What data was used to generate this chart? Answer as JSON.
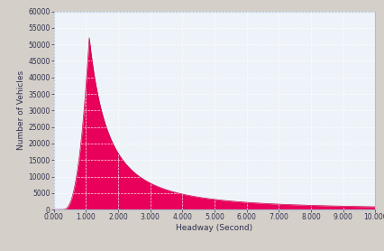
{
  "title": "",
  "xlabel": "Headway (Second)",
  "ylabel": "Number of Vehicles",
  "xlim": [
    0.0,
    10.0
  ],
  "ylim": [
    0,
    60000
  ],
  "xticks": [
    0.0,
    1.0,
    2.0,
    3.0,
    4.0,
    5.0,
    6.0,
    7.0,
    8.0,
    9.0,
    10.0
  ],
  "yticks": [
    0,
    5000,
    10000,
    15000,
    20000,
    25000,
    30000,
    35000,
    40000,
    45000,
    50000,
    55000,
    60000
  ],
  "fill_color": "#E8005A",
  "line_color": "#CC0044",
  "background_color": "#EEF3FA",
  "grid_color": "#FFFFFF",
  "top_bar_color": "#D4CFC8",
  "border_color": "#A8C0D8",
  "peak_x": 1.1,
  "peak_y": 52000,
  "decay_rate": 0.65,
  "start_x": 0.28,
  "rise_exp": 2.5
}
